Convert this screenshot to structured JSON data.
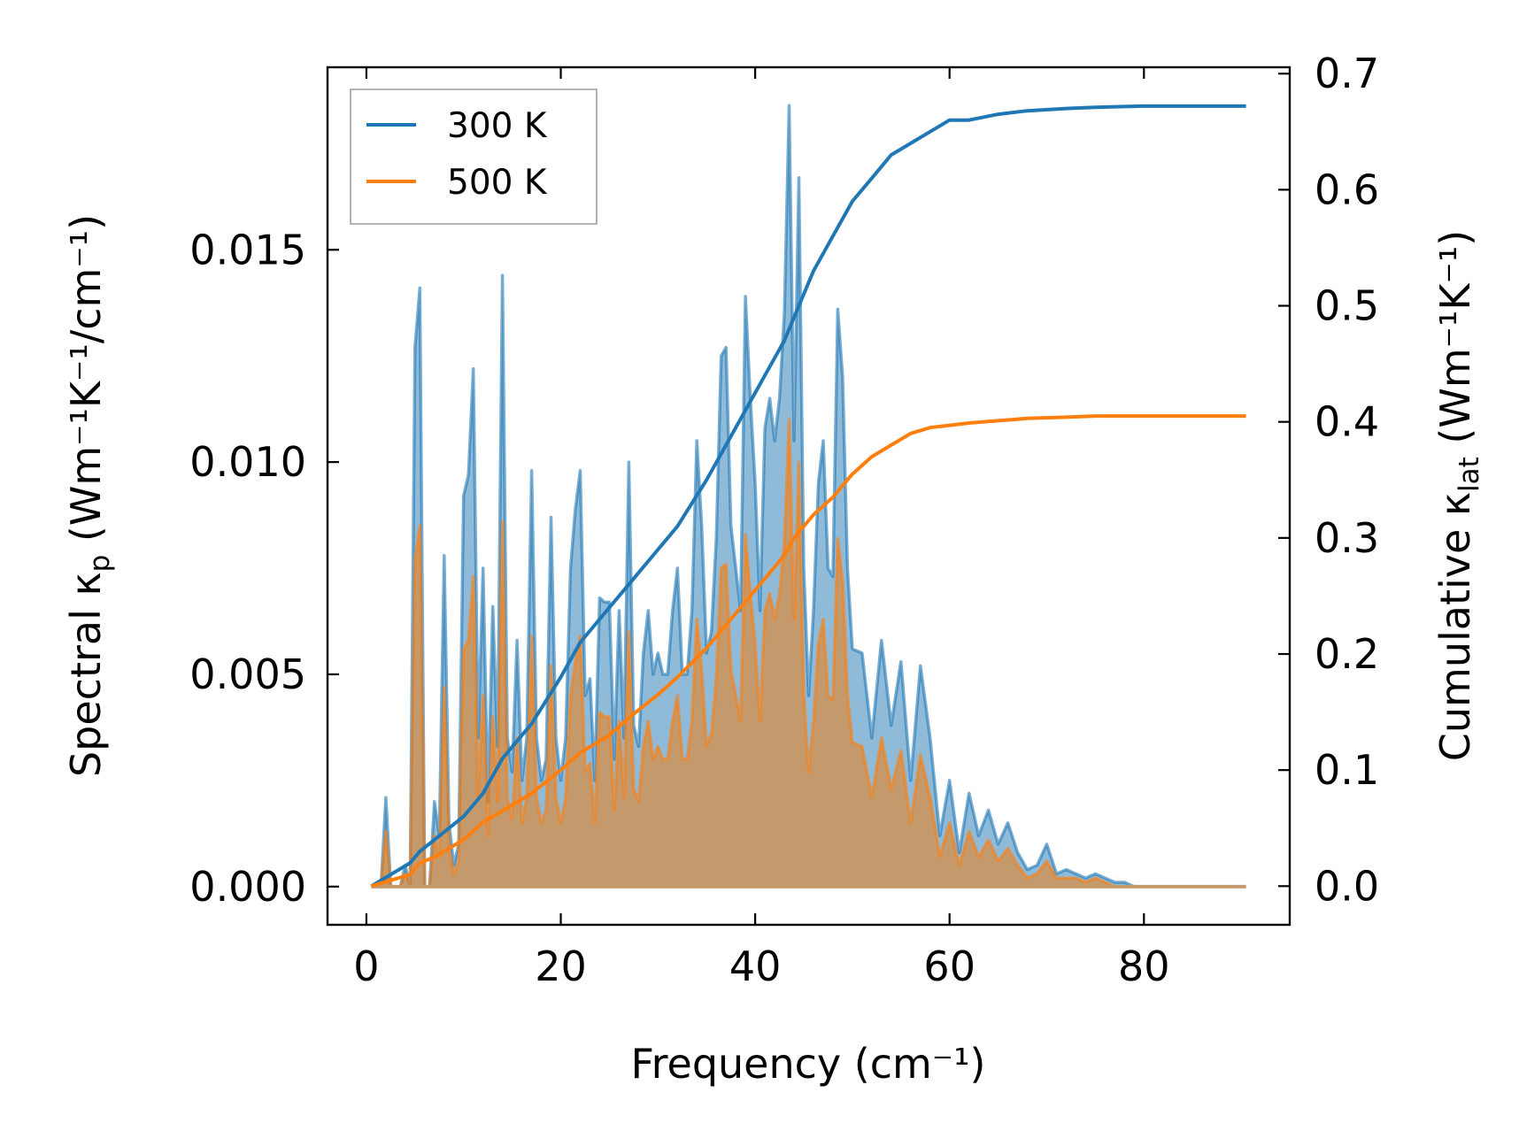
{
  "chart_data": {
    "type": "area+line",
    "xlabel": "Frequency (cm⁻¹)",
    "ylabel_left": {
      "main": "Spectral κ",
      "sub": "p",
      "rest": " (Wm⁻¹K⁻¹/cm⁻¹)"
    },
    "ylabel_right": {
      "main": "Cumulative κ",
      "sub": "lat",
      "rest": " (Wm⁻¹K⁻¹)"
    },
    "xlim": [
      -4,
      95
    ],
    "ylim_left": [
      -0.0009,
      0.0193
    ],
    "ylim_right": [
      -0.0333,
      0.7055
    ],
    "x_ticks": [
      0,
      20,
      40,
      60,
      80
    ],
    "x_tick_labels": [
      "0",
      "20",
      "40",
      "60",
      "80"
    ],
    "y_left_ticks": [
      0.0,
      0.005,
      0.01,
      0.015
    ],
    "y_left_tick_labels": [
      "0.000",
      "0.005",
      "0.010",
      "0.015"
    ],
    "y_right_ticks": [
      0.0,
      0.1,
      0.2,
      0.3,
      0.4,
      0.5,
      0.6,
      0.7
    ],
    "y_right_tick_labels": [
      "0.0",
      "0.1",
      "0.2",
      "0.3",
      "0.4",
      "0.5",
      "0.6",
      "0.7"
    ],
    "legend": {
      "placement": "upper-left",
      "entries": [
        "300 K",
        "500 K"
      ]
    },
    "colors": {
      "s300": "#1f77b4",
      "s500": "#ff7f0e",
      "fill300": "#1f77b4",
      "fill500": "#ff7f0e",
      "overlap": "#c49a6c"
    },
    "spectral": {
      "x": [
        0.5,
        1.5,
        2.0,
        2.5,
        3.0,
        3.5,
        4.0,
        4.5,
        5.0,
        5.5,
        6.0,
        6.5,
        7.0,
        7.5,
        8.0,
        8.5,
        9.0,
        9.5,
        10.0,
        10.5,
        11.0,
        11.5,
        12.0,
        12.5,
        13.0,
        13.5,
        14.0,
        14.5,
        15.0,
        15.5,
        16.0,
        16.5,
        17.0,
        17.5,
        18.0,
        18.5,
        19.0,
        19.5,
        20.0,
        20.5,
        21.0,
        21.5,
        22.0,
        22.5,
        23.0,
        23.5,
        24.0,
        24.5,
        25.0,
        25.5,
        26.0,
        26.5,
        27.0,
        27.5,
        28.0,
        28.5,
        29.0,
        29.5,
        30.0,
        30.5,
        31.0,
        31.5,
        32.0,
        32.5,
        33.0,
        33.5,
        34.0,
        34.5,
        35.0,
        35.5,
        36.0,
        36.5,
        37.0,
        37.5,
        38.0,
        38.5,
        39.0,
        39.5,
        40.0,
        40.5,
        41.0,
        41.5,
        42.0,
        42.5,
        43.0,
        43.5,
        44.0,
        44.5,
        45.0,
        45.5,
        46.0,
        46.5,
        47.0,
        47.5,
        48.0,
        48.5,
        49.0,
        49.5,
        50.0,
        51.0,
        52.0,
        53.0,
        54.0,
        55.0,
        56.0,
        57.0,
        58.0,
        59.0,
        60.0,
        61.0,
        62.0,
        63.0,
        64.0,
        65.0,
        66.0,
        67.0,
        68.0,
        69.0,
        70.0,
        71.0,
        72.0,
        73.0,
        74.0,
        75.0,
        76.0,
        77.0,
        78.0,
        79.0,
        80.0,
        82.0,
        84.0,
        86.0,
        88.0,
        90.5
      ],
      "y300": [
        0.0,
        0.0,
        0.0021,
        0.0,
        0.0,
        0.0,
        0.0005,
        0.0,
        0.0127,
        0.0141,
        0.0,
        0.0,
        0.002,
        0.0012,
        0.0078,
        0.0015,
        0.0005,
        0.001,
        0.0092,
        0.0097,
        0.0122,
        0.0035,
        0.0075,
        0.002,
        0.0066,
        0.0033,
        0.0144,
        0.0035,
        0.0027,
        0.0058,
        0.0025,
        0.0035,
        0.0098,
        0.0035,
        0.0025,
        0.003,
        0.0087,
        0.0035,
        0.0025,
        0.0035,
        0.0075,
        0.0089,
        0.0098,
        0.0045,
        0.0049,
        0.0025,
        0.0068,
        0.0067,
        0.0067,
        0.003,
        0.0065,
        0.0035,
        0.01,
        0.0038,
        0.0033,
        0.0055,
        0.0065,
        0.005,
        0.0055,
        0.005,
        0.005,
        0.0065,
        0.0075,
        0.005,
        0.005,
        0.0065,
        0.0105,
        0.0085,
        0.0055,
        0.006,
        0.0082,
        0.0125,
        0.0127,
        0.0085,
        0.0075,
        0.0065,
        0.0139,
        0.0115,
        0.0095,
        0.0065,
        0.0108,
        0.0115,
        0.0105,
        0.0115,
        0.0135,
        0.0184,
        0.0105,
        0.0167,
        0.0075,
        0.0045,
        0.0065,
        0.0095,
        0.0105,
        0.0075,
        0.0073,
        0.0136,
        0.012,
        0.0075,
        0.0056,
        0.0055,
        0.0035,
        0.0058,
        0.0038,
        0.0053,
        0.0025,
        0.0052,
        0.0035,
        0.0012,
        0.0025,
        0.0008,
        0.0022,
        0.0012,
        0.0018,
        0.001,
        0.0015,
        0.0008,
        0.0004,
        0.0005,
        0.001,
        0.0003,
        0.0004,
        0.0003,
        0.0002,
        0.0003,
        0.0002,
        0.0001,
        0.0001,
        0.0,
        0.0,
        0.0,
        0.0,
        0.0,
        0.0,
        0.0
      ],
      "y500": [
        0.0,
        0.0,
        0.0013,
        0.0,
        0.0,
        0.0,
        0.0003,
        0.0,
        0.0077,
        0.0085,
        0.0,
        0.0,
        0.0012,
        0.0007,
        0.0047,
        0.0009,
        0.0003,
        0.0006,
        0.0056,
        0.0058,
        0.0073,
        0.0021,
        0.0045,
        0.0012,
        0.004,
        0.002,
        0.0086,
        0.0021,
        0.0016,
        0.0035,
        0.0015,
        0.0021,
        0.0059,
        0.0021,
        0.0015,
        0.0018,
        0.0052,
        0.0021,
        0.0015,
        0.0021,
        0.0045,
        0.0053,
        0.0059,
        0.0027,
        0.0029,
        0.0015,
        0.0041,
        0.004,
        0.004,
        0.0018,
        0.0039,
        0.0021,
        0.006,
        0.0023,
        0.002,
        0.0033,
        0.0039,
        0.003,
        0.0033,
        0.003,
        0.003,
        0.0039,
        0.0045,
        0.003,
        0.003,
        0.0039,
        0.0063,
        0.0051,
        0.0033,
        0.0036,
        0.0049,
        0.0075,
        0.0076,
        0.0051,
        0.0045,
        0.0039,
        0.0083,
        0.0069,
        0.0057,
        0.0039,
        0.0065,
        0.0069,
        0.0063,
        0.0069,
        0.0081,
        0.011,
        0.0063,
        0.01,
        0.0045,
        0.0027,
        0.0039,
        0.0057,
        0.0063,
        0.0045,
        0.0044,
        0.0082,
        0.0072,
        0.0045,
        0.0034,
        0.0033,
        0.0021,
        0.0035,
        0.0023,
        0.0032,
        0.0015,
        0.0031,
        0.0021,
        0.0007,
        0.0015,
        0.0005,
        0.0013,
        0.0007,
        0.0011,
        0.0006,
        0.0009,
        0.0005,
        0.0002,
        0.0003,
        0.0006,
        0.0002,
        0.0002,
        0.0002,
        0.0001,
        0.0002,
        0.0001,
        0.0,
        0.0,
        0.0,
        0.0,
        0.0,
        0.0,
        0.0,
        0.0,
        0.0
      ]
    },
    "cumulative": {
      "x": [
        0.5,
        4.5,
        5.5,
        7.0,
        10.0,
        12.0,
        14.0,
        17.0,
        20.0,
        22.0,
        25.0,
        27.0,
        30.0,
        32.0,
        35.0,
        37.0,
        39.0,
        41.0,
        43.0,
        44.0,
        45.0,
        46.0,
        48.0,
        50.0,
        52.0,
        54.0,
        56.0,
        58.0,
        60.0,
        62.0,
        65.0,
        68.0,
        72.0,
        75.0,
        80.0,
        85.0,
        90.5
      ],
      "y300": [
        0.0,
        0.02,
        0.03,
        0.04,
        0.06,
        0.08,
        0.11,
        0.14,
        0.18,
        0.21,
        0.24,
        0.26,
        0.29,
        0.31,
        0.35,
        0.38,
        0.41,
        0.44,
        0.47,
        0.49,
        0.51,
        0.53,
        0.56,
        0.59,
        0.61,
        0.63,
        0.64,
        0.65,
        0.66,
        0.66,
        0.665,
        0.668,
        0.67,
        0.671,
        0.672,
        0.672,
        0.672
      ],
      "y500": [
        0.0,
        0.01,
        0.02,
        0.025,
        0.04,
        0.055,
        0.065,
        0.08,
        0.1,
        0.115,
        0.13,
        0.145,
        0.165,
        0.18,
        0.205,
        0.225,
        0.245,
        0.265,
        0.285,
        0.3,
        0.31,
        0.32,
        0.335,
        0.355,
        0.37,
        0.38,
        0.39,
        0.395,
        0.397,
        0.399,
        0.401,
        0.403,
        0.404,
        0.405,
        0.405,
        0.405,
        0.405
      ]
    }
  }
}
